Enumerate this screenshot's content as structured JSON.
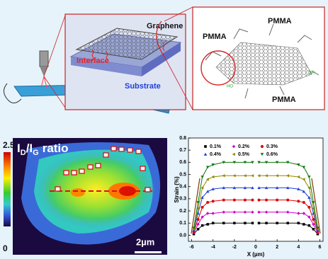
{
  "schematic": {
    "graphene": "Graphene",
    "interface": "Interface",
    "substrate": "Substrate"
  },
  "zoom": {
    "pmma_left": "PMMA",
    "pmma_top": "PMMA",
    "pmma_bottom": "PMMA"
  },
  "map": {
    "title": [
      "I",
      "D",
      "/I",
      "G",
      "ratio"
    ],
    "colorbar_max": "2.5",
    "colorbar_min": "0",
    "scale_bar": "2µm"
  },
  "chart_data": {
    "type": "line",
    "x_label": "X (µm)",
    "y_label": "Strain (%)",
    "x": [
      -5.8,
      -5.4,
      -5,
      -4.5,
      -4,
      -3,
      -2,
      -1,
      -0.3,
      0,
      0.3,
      1,
      2,
      3,
      4,
      4.5,
      5,
      5.4,
      5.8
    ],
    "series": [
      {
        "name": "0.1%",
        "color": "#000000",
        "marker": "square",
        "values": [
          0.01,
          0.05,
          0.08,
          0.09,
          0.1,
          0.1,
          0.1,
          0.1,
          0.1,
          null,
          0.1,
          0.1,
          0.1,
          0.1,
          0.1,
          0.09,
          0.08,
          0.05,
          0.01
        ]
      },
      {
        "name": "0.2%",
        "color": "#cc00cc",
        "marker": "diamond",
        "values": [
          0.02,
          0.09,
          0.15,
          0.18,
          0.18,
          0.19,
          0.19,
          0.19,
          0.19,
          null,
          0.19,
          0.19,
          0.19,
          0.19,
          0.18,
          0.18,
          0.15,
          0.09,
          0.02
        ]
      },
      {
        "name": "0.3%",
        "color": "#e00000",
        "marker": "circle",
        "values": [
          0.03,
          0.13,
          0.23,
          0.27,
          0.28,
          0.29,
          0.29,
          0.29,
          0.29,
          null,
          0.29,
          0.29,
          0.29,
          0.29,
          0.28,
          0.27,
          0.23,
          0.13,
          0.03
        ]
      },
      {
        "name": "0.4%",
        "color": "#1f3fd6",
        "marker": "triangle-up",
        "values": [
          0.04,
          0.18,
          0.31,
          0.36,
          0.38,
          0.39,
          0.39,
          0.39,
          0.39,
          null,
          0.39,
          0.39,
          0.39,
          0.39,
          0.38,
          0.36,
          0.31,
          0.18,
          0.04
        ]
      },
      {
        "name": "0.5%",
        "color": "#8b8b00",
        "marker": "triangle-left",
        "values": [
          0.05,
          0.22,
          0.39,
          0.46,
          0.48,
          0.49,
          0.49,
          0.49,
          0.49,
          null,
          0.49,
          0.49,
          0.49,
          0.49,
          0.48,
          0.46,
          0.39,
          0.22,
          0.05
        ]
      },
      {
        "name": "0.6%",
        "color": "#0a7a0a",
        "marker": "triangle-down",
        "values": [
          0.06,
          0.27,
          0.48,
          0.56,
          0.58,
          0.6,
          0.6,
          0.6,
          0.6,
          null,
          0.6,
          0.6,
          0.6,
          0.6,
          0.58,
          0.56,
          0.48,
          0.27,
          0.06
        ]
      }
    ],
    "xlim": [
      -6.3,
      6.3
    ],
    "xticks": [
      -6,
      -4,
      -2,
      0,
      2,
      4,
      6
    ],
    "ylim": [
      -0.05,
      0.8
    ],
    "yticks": [
      {
        "value": 0,
        "label": "0.0"
      },
      {
        "value": 0.1,
        "label": "0.1"
      },
      {
        "value": 0.2,
        "label": "0.2"
      },
      {
        "value": 0.3,
        "label": "0.3"
      },
      {
        "value": 0.4,
        "label": "0.4"
      },
      {
        "value": 0.5,
        "label": "0.5"
      },
      {
        "value": 0.6,
        "label": "0.6"
      },
      {
        "value": 0.7,
        "label": "0.7"
      },
      {
        "value": 0.8,
        "label": "0.8"
      }
    ]
  }
}
